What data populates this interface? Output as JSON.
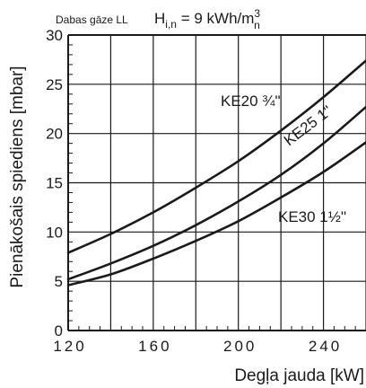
{
  "chart_data": {
    "type": "line",
    "subtitle": "Dabas gāze LL",
    "title": {
      "main": "H",
      "sub": "i,n",
      "mid": " = 9 kWh/m",
      "sup": "3",
      "sub2": "n"
    },
    "xlabel": "Degļa jauda [kW]",
    "ylabel": "Pienākošais spiediens [mbar]",
    "xlim": [
      120,
      260
    ],
    "ylim": [
      0,
      30
    ],
    "x_ticks": [
      120,
      160,
      200,
      240
    ],
    "x_tick_labels": [
      "120",
      "160",
      "200",
      "240"
    ],
    "y_ticks": [
      0,
      5,
      10,
      15,
      20,
      25,
      30
    ],
    "y_tick_labels": [
      "0",
      "5",
      "10",
      "15",
      "20",
      "25",
      "30"
    ],
    "grid": true,
    "series": [
      {
        "name": "KE20 ¾\"",
        "x": [
          120,
          140,
          160,
          180,
          200,
          220,
          240,
          260
        ],
        "y": [
          7.9,
          9.8,
          12.0,
          14.5,
          17.2,
          20.3,
          23.7,
          27.4
        ]
      },
      {
        "name": "KE25 1\"",
        "x": [
          120,
          140,
          160,
          180,
          200,
          220,
          240,
          260
        ],
        "y": [
          5.2,
          6.8,
          8.6,
          10.7,
          13.1,
          15.8,
          19.0,
          22.7
        ]
      },
      {
        "name": "KE30 1½\"",
        "x": [
          120,
          140,
          160,
          180,
          200,
          220,
          240,
          260
        ],
        "y": [
          4.6,
          5.7,
          7.3,
          9.1,
          11.1,
          13.5,
          16.1,
          19.1
        ]
      }
    ]
  }
}
